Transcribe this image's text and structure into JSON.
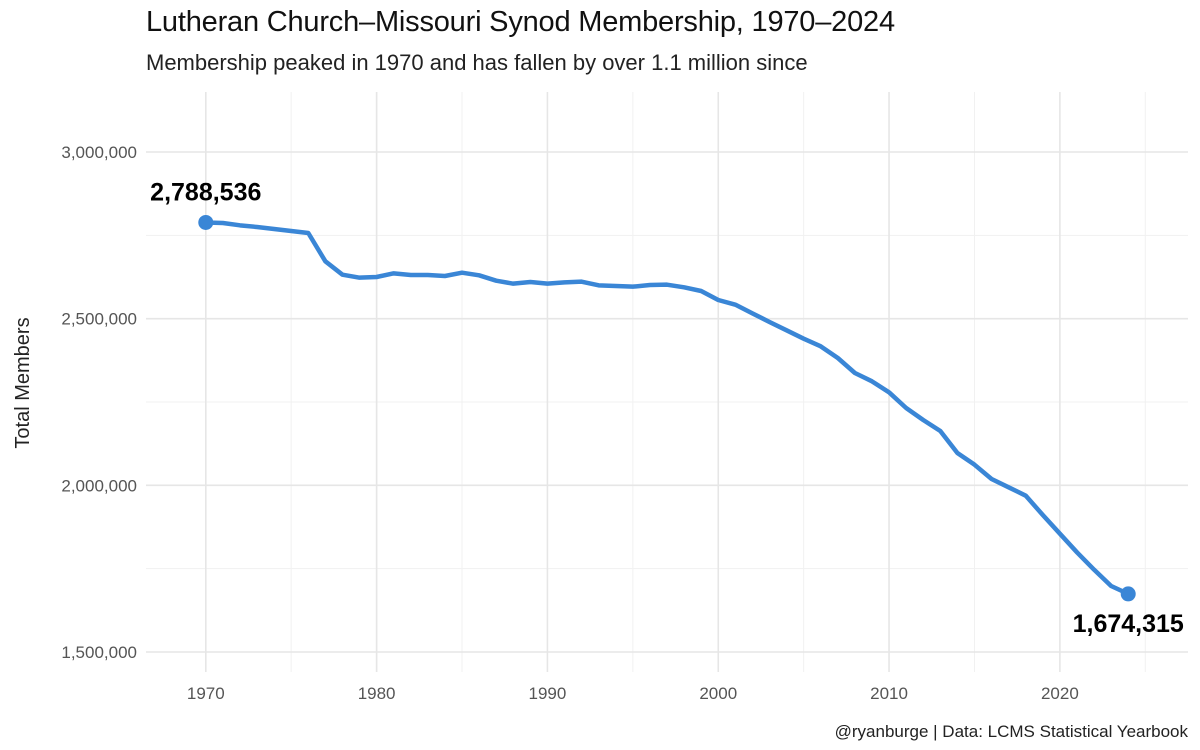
{
  "chart_data": {
    "type": "line",
    "title": "Lutheran Church–Missouri Synod Membership, 1970–2024",
    "subtitle": "Membership peaked in 1970 and has fallen by over 1.1 million since",
    "ylabel": "Total Members",
    "xlabel": "",
    "caption": "@ryanburge | Data: LCMS Statistical Yearbook",
    "xlim": [
      1966.5,
      1927.5
    ],
    "ylim": [
      1440000,
      3180000
    ],
    "x_ticks": [
      1970,
      1980,
      1990,
      2000,
      2010,
      2020
    ],
    "x_tick_labels": [
      "1970",
      "1980",
      "1990",
      "2000",
      "2010",
      "2020"
    ],
    "y_ticks": [
      1500000,
      2000000,
      2500000,
      3000000
    ],
    "y_tick_labels": [
      "1,500,000",
      "2,000,000",
      "2,500,000",
      "3,000,000"
    ],
    "grid": true,
    "line_color": "#3a86d6",
    "series": [
      {
        "x": [
          1970,
          1971,
          1972,
          1973,
          1974,
          1975,
          1976,
          1977,
          1978,
          1979,
          1980,
          1981,
          1982,
          1983,
          1984,
          1985,
          1986,
          1987,
          1988,
          1989,
          1990,
          1991,
          1992,
          1993,
          1994,
          1995,
          1996,
          1997,
          1998,
          1999,
          2000,
          2001,
          2002,
          2003,
          2004,
          2005,
          2006,
          2007,
          2008,
          2009,
          2010,
          2011,
          2012,
          2013,
          2014,
          2015,
          2016,
          2017,
          2018,
          2019,
          2020,
          2021,
          2022,
          2023,
          2024
        ],
        "values": [
          2788536,
          2787000,
          2780000,
          2775000,
          2769000,
          2763000,
          2757000,
          2672000,
          2632000,
          2623000,
          2625000,
          2636000,
          2631000,
          2631000,
          2628000,
          2638000,
          2630000,
          2614000,
          2605000,
          2610000,
          2605000,
          2609000,
          2611000,
          2600000,
          2598000,
          2596000,
          2601000,
          2602000,
          2594000,
          2583000,
          2556000,
          2542000,
          2516000,
          2490000,
          2465000,
          2440000,
          2417000,
          2382000,
          2337000,
          2312000,
          2279000,
          2232000,
          2196000,
          2163000,
          2097000,
          2062000,
          2019000,
          1994000,
          1969000,
          1911000,
          1855000,
          1799000,
          1747000,
          1698000,
          1674315
        ]
      }
    ],
    "annotations": [
      {
        "x": 1970,
        "y": 2788536,
        "label": "2,788,536"
      },
      {
        "x": 2024,
        "y": 1674315,
        "label": "1,674,315"
      }
    ]
  }
}
